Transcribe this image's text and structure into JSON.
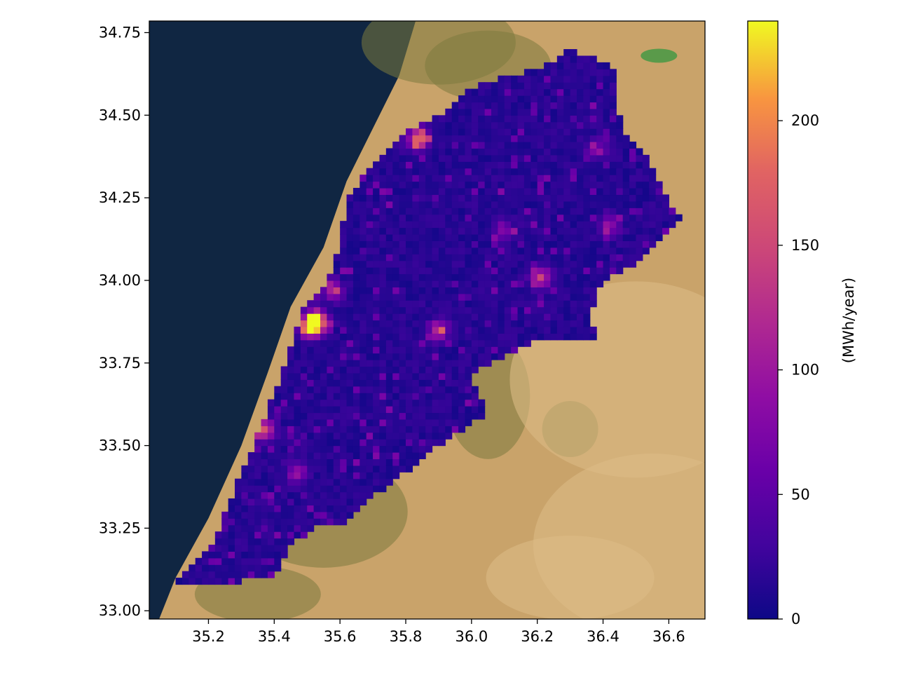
{
  "chart_data": {
    "type": "heatmap",
    "title": "",
    "xlabel": "",
    "ylabel": "",
    "xlim": [
      35.02,
      36.71
    ],
    "ylim": [
      32.975,
      34.785
    ],
    "x_ticks": [
      "35.2",
      "35.4",
      "35.6",
      "35.8",
      "36.0",
      "36.2",
      "36.4",
      "36.6"
    ],
    "x_tick_values": [
      35.2,
      35.4,
      35.6,
      35.8,
      36.0,
      36.2,
      36.4,
      36.6
    ],
    "y_ticks": [
      "33.00",
      "33.25",
      "33.50",
      "33.75",
      "34.00",
      "34.25",
      "34.50",
      "34.75"
    ],
    "y_tick_values": [
      33.0,
      33.25,
      33.5,
      33.75,
      34.0,
      34.25,
      34.5,
      34.75
    ],
    "basemap": "satellite imagery",
    "grid": false,
    "colormap": "plasma",
    "colorbar": {
      "label": "(MWh/year)",
      "range": [
        0,
        240
      ],
      "ticks": [
        "0",
        "50",
        "100",
        "150",
        "200"
      ],
      "tick_values": [
        0,
        50,
        100,
        150,
        200
      ],
      "position": "right"
    },
    "region_outline": [
      [
        35.1,
        33.09
      ],
      [
        35.21,
        33.2
      ],
      [
        35.28,
        33.37
      ],
      [
        35.36,
        33.56
      ],
      [
        35.43,
        33.74
      ],
      [
        35.48,
        33.9
      ],
      [
        35.55,
        33.98
      ],
      [
        35.6,
        34.1
      ],
      [
        35.62,
        34.25
      ],
      [
        35.7,
        34.35
      ],
      [
        35.78,
        34.44
      ],
      [
        35.9,
        34.5
      ],
      [
        35.98,
        34.58
      ],
      [
        36.1,
        34.62
      ],
      [
        36.2,
        34.64
      ],
      [
        36.3,
        34.7
      ],
      [
        36.45,
        34.64
      ],
      [
        36.43,
        34.56
      ],
      [
        36.47,
        34.45
      ],
      [
        36.55,
        34.35
      ],
      [
        36.6,
        34.24
      ],
      [
        36.64,
        34.2
      ],
      [
        36.58,
        34.12
      ],
      [
        36.5,
        34.05
      ],
      [
        36.4,
        34.0
      ],
      [
        36.36,
        33.88
      ],
      [
        36.38,
        33.83
      ],
      [
        36.25,
        33.83
      ],
      [
        36.15,
        33.8
      ],
      [
        36.05,
        33.75
      ],
      [
        36.0,
        33.7
      ],
      [
        36.05,
        33.6
      ],
      [
        35.98,
        33.55
      ],
      [
        35.9,
        33.5
      ],
      [
        35.8,
        33.42
      ],
      [
        35.72,
        33.36
      ],
      [
        35.62,
        33.27
      ],
      [
        35.55,
        33.27
      ],
      [
        35.45,
        33.2
      ],
      [
        35.4,
        33.1
      ],
      [
        35.22,
        33.08
      ]
    ],
    "hotspots": [
      {
        "lon": 35.51,
        "lat": 33.86,
        "value": 230
      },
      {
        "lon": 35.53,
        "lat": 33.88,
        "value": 200
      },
      {
        "lon": 35.84,
        "lat": 34.43,
        "value": 175
      },
      {
        "lon": 35.37,
        "lat": 33.55,
        "value": 150
      },
      {
        "lon": 36.21,
        "lat": 34.01,
        "value": 125
      },
      {
        "lon": 35.9,
        "lat": 33.85,
        "value": 110
      },
      {
        "lon": 35.58,
        "lat": 33.97,
        "value": 95
      },
      {
        "lon": 35.47,
        "lat": 33.42,
        "value": 85
      },
      {
        "lon": 36.42,
        "lat": 34.17,
        "value": 80
      },
      {
        "lon": 35.22,
        "lat": 33.27,
        "value": 80
      },
      {
        "lon": 36.1,
        "lat": 34.15,
        "value": 60
      },
      {
        "lon": 36.38,
        "lat": 34.4,
        "value": 60
      }
    ],
    "background_value": 15
  }
}
